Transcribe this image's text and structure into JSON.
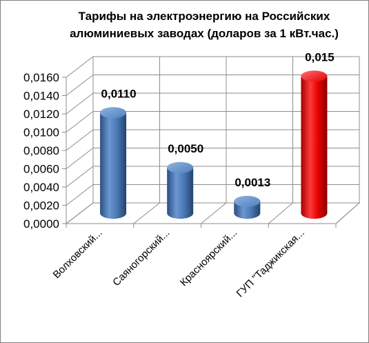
{
  "chart_data": {
    "type": "bar",
    "title": "Тарифы на электроэнергию на Российских алюминиевых заводах (доларов за  1 кВт.час.)",
    "categories": [
      "Волховский...",
      "Саяногорский...",
      "Красноярский...",
      "ГУП \"Таджикская..."
    ],
    "values": [
      0.011,
      0.005,
      0.0013,
      0.015
    ],
    "data_labels": [
      "0,0110",
      "0,0050",
      "0,0013",
      "0,015"
    ],
    "colors": [
      "#4f81bd",
      "#4f81bd",
      "#4f81bd",
      "#ff0000"
    ],
    "ylim": [
      0,
      0.016
    ],
    "yticks": [
      "0,0000",
      "0,0020",
      "0,0040",
      "0,0060",
      "0,0080",
      "0,0100",
      "0,0120",
      "0,0140",
      "0,0160"
    ],
    "xlabel": "",
    "ylabel": "",
    "grid": true,
    "legend": "none",
    "style": "3d-cylinder"
  }
}
